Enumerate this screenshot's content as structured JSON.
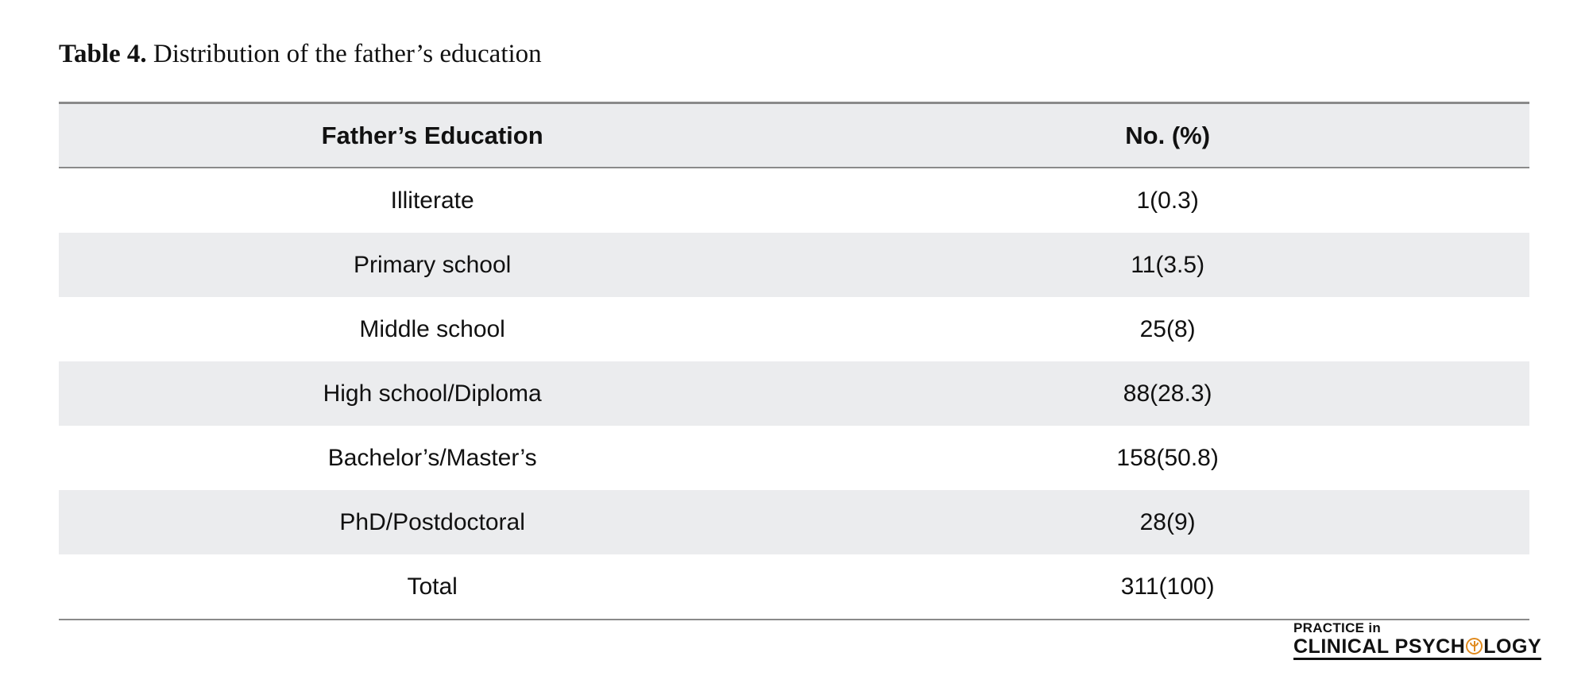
{
  "caption": {
    "label": "Table 4.",
    "text": " Distribution of the father’s education"
  },
  "table": {
    "headers": [
      "Father’s Education",
      "No. (%)"
    ],
    "rows": [
      [
        "Illiterate",
        "1(0.3)"
      ],
      [
        "Primary school",
        "11(3.5)"
      ],
      [
        "Middle school",
        "25(8)"
      ],
      [
        "High school/Diploma",
        "88(28.3)"
      ],
      [
        "Bachelor’s/Master’s",
        "158(50.8)"
      ],
      [
        "PhD/Postdoctoral",
        "28(9)"
      ],
      [
        "Total",
        "311(100)"
      ]
    ]
  },
  "logo": {
    "top_line": "PRACTICE in",
    "bottom_pre": "CLINICAL PSYCH",
    "bottom_post": "LOGY",
    "mark_icon": "psi-circle-icon",
    "mark_color": "#e08a1e"
  },
  "colors": {
    "stripe": "#ebecee",
    "rule": "#8a8a8a",
    "text": "#111111"
  }
}
